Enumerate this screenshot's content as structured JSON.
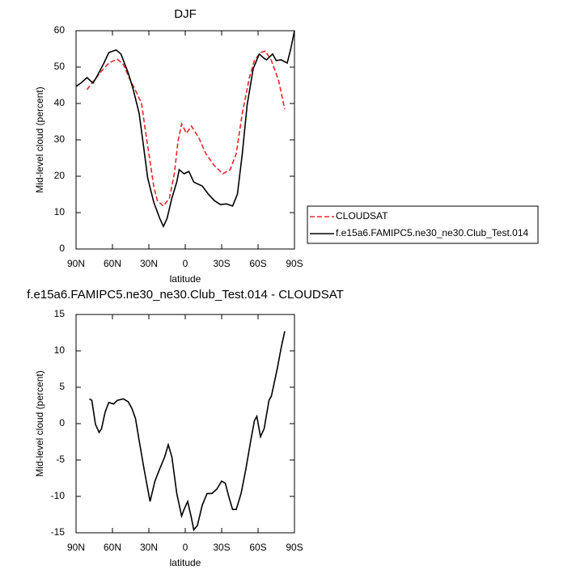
{
  "chart_data": [
    {
      "type": "line",
      "title": "DJF",
      "x_label": "latitude",
      "y_label": "Mid-level cloud (percent)",
      "xlim": [
        90,
        -90
      ],
      "xticks": [
        {
          "value": 90,
          "label": "90N"
        },
        {
          "value": 60,
          "label": "60N"
        },
        {
          "value": 30,
          "label": "30N"
        },
        0,
        {
          "value": -30,
          "label": "30S"
        },
        {
          "value": -60,
          "label": "60S"
        },
        {
          "value": -90,
          "label": "90S"
        }
      ],
      "ylim": [
        0,
        60
      ],
      "yticks": [
        0,
        10,
        20,
        30,
        40,
        50,
        60
      ],
      "legend": "right",
      "series": [
        {
          "name": "CLOUDSAT",
          "color": "#e8262b",
          "dash": true,
          "x": [
            81,
            76,
            69,
            63,
            56,
            51,
            46,
            41,
            36,
            33,
            29,
            26,
            23,
            18,
            13,
            9,
            6,
            3,
            -1,
            -5,
            -11,
            -17,
            -24,
            -31,
            -37,
            -42,
            -47,
            -53,
            -57,
            -62,
            -66,
            -71,
            -77,
            -82
          ],
          "values": [
            43.8,
            46,
            48.9,
            51.1,
            52.2,
            50.7,
            46.9,
            43.6,
            40,
            32.9,
            24,
            17.3,
            13.3,
            11.8,
            14,
            20.7,
            29.6,
            34.4,
            31.8,
            33.8,
            30.7,
            26.2,
            22.9,
            20.7,
            21.8,
            26.2,
            37.3,
            47.3,
            51.8,
            54,
            54.4,
            51.8,
            46.2,
            38.4
          ]
        },
        {
          "name": "f.e15a6.FAMIPC5.ne30_ne30.Club_Test.014",
          "color": "#000000",
          "dash": false,
          "x": [
            90,
            86,
            81,
            76,
            73,
            67,
            63,
            57,
            53,
            47,
            43,
            38,
            34,
            31,
            26,
            21,
            18,
            15,
            11,
            7,
            5,
            1,
            -3,
            -7,
            -14,
            -19,
            -24,
            -29,
            -34,
            -39,
            -43,
            -47,
            -51,
            -56,
            -61,
            -65,
            -67,
            -72,
            -75,
            -79,
            -84,
            -87,
            -90
          ],
          "values": [
            44.7,
            45.6,
            47.1,
            45.6,
            47.3,
            51.1,
            54,
            54.7,
            53.6,
            48.4,
            44,
            37.3,
            27.3,
            19.6,
            12.9,
            8.4,
            6.2,
            8.4,
            14,
            18.4,
            21.8,
            20.7,
            21.3,
            18.4,
            17.3,
            15.1,
            13.3,
            12.2,
            12.4,
            11.8,
            15.1,
            26.2,
            39.6,
            49.6,
            53.6,
            52.4,
            52,
            53.6,
            51.8,
            52,
            51.1,
            55.1,
            60
          ]
        }
      ]
    },
    {
      "type": "line",
      "title": "f.e15a6.FAMIPC5.ne30_ne30.Club_Test.014 - CLOUDSAT",
      "x_label": "latitude",
      "y_label": "Mid-level cloud (percent)",
      "xlim": [
        90,
        -90
      ],
      "xticks": [
        {
          "value": 90,
          "label": "90N"
        },
        {
          "value": 60,
          "label": "60N"
        },
        {
          "value": 30,
          "label": "30N"
        },
        0,
        {
          "value": -30,
          "label": "30S"
        },
        {
          "value": -60,
          "label": "60S"
        },
        {
          "value": -90,
          "label": "90S"
        }
      ],
      "ylim": [
        -15,
        15
      ],
      "yticks": [
        -15,
        -10,
        -5,
        0,
        5,
        10,
        15
      ],
      "series": [
        {
          "color": "#000000",
          "dash": false,
          "x": [
            79,
            77,
            74,
            71,
            69,
            66,
            63,
            59,
            56,
            51,
            47,
            44,
            41,
            38,
            34,
            29,
            25,
            21,
            17,
            14,
            11,
            7,
            3,
            1,
            -2,
            -5,
            -7,
            -10,
            -14,
            -18,
            -22,
            -26,
            -30,
            -33,
            -36,
            -39,
            -42,
            -46,
            -50,
            -54,
            -57,
            -59,
            -62,
            -65,
            -69,
            -71,
            -76,
            -79,
            -82
          ],
          "values": [
            3.4,
            3.2,
            -0.1,
            -1.2,
            -0.7,
            1.6,
            2.9,
            2.7,
            3.2,
            3.4,
            3,
            2.1,
            0.7,
            -2.3,
            -6.2,
            -10.7,
            -7.9,
            -6.2,
            -4.6,
            -2.9,
            -4.6,
            -9.6,
            -12.7,
            -11.8,
            -10.7,
            -12.9,
            -14.6,
            -14,
            -11.2,
            -9.6,
            -9.6,
            -9,
            -7.9,
            -8.2,
            -10.1,
            -11.8,
            -11.8,
            -9.6,
            -6.2,
            -2.3,
            0.4,
            1,
            -1.8,
            -0.7,
            3.2,
            3.8,
            7.7,
            10.4,
            12.7
          ]
        }
      ]
    }
  ]
}
